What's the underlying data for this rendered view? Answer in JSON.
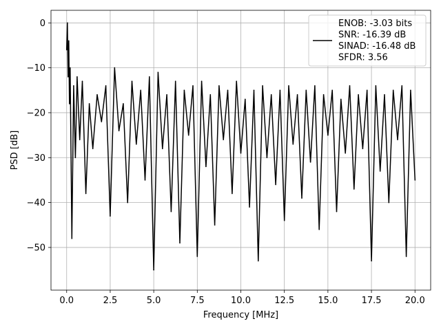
{
  "chart_data": {
    "type": "line",
    "xlabel": "Frequency [MHz]",
    "ylabel": "PSD [dB]",
    "xlim": [
      -0.9,
      20.9
    ],
    "ylim": [
      -59.5,
      2.8
    ],
    "xticks": [
      0.0,
      2.5,
      5.0,
      7.5,
      10.0,
      12.5,
      15.0,
      17.5,
      20.0
    ],
    "xtick_labels": [
      "0.0",
      "2.5",
      "5.0",
      "7.5",
      "10.0",
      "12.5",
      "15.0",
      "17.5",
      "20.0"
    ],
    "yticks": [
      0,
      -10,
      -20,
      -30,
      -40,
      -50
    ],
    "ytick_labels": [
      "0",
      "−10",
      "−20",
      "−30",
      "−40",
      "−50"
    ],
    "grid": true,
    "line_color": "#000000",
    "legend": {
      "placement": "top-right",
      "entries": [
        "ENOB: -3.03 bits",
        "SNR: -16.39 dB",
        "SINAD: -16.48 dB",
        "SFDR: 3.56"
      ]
    },
    "series": [
      {
        "x": [
          0.0,
          0.04,
          0.08,
          0.12,
          0.16,
          0.2,
          0.3,
          0.4,
          0.5,
          0.6,
          0.75,
          0.9,
          1.1,
          1.3,
          1.5,
          1.75,
          2.0,
          2.25,
          2.5,
          2.75,
          3.0,
          3.25,
          3.5,
          3.75,
          4.0,
          4.25,
          4.5,
          4.75,
          5.0,
          5.25,
          5.5,
          5.75,
          6.0,
          6.25,
          6.5,
          6.75,
          7.0,
          7.25,
          7.5,
          7.75,
          8.0,
          8.25,
          8.5,
          8.75,
          9.0,
          9.25,
          9.5,
          9.75,
          10.0,
          10.25,
          10.5,
          10.75,
          11.0,
          11.25,
          11.5,
          11.75,
          12.0,
          12.25,
          12.5,
          12.75,
          13.0,
          13.25,
          13.5,
          13.75,
          14.0,
          14.25,
          14.5,
          14.75,
          15.0,
          15.25,
          15.5,
          15.75,
          16.0,
          16.25,
          16.5,
          16.75,
          17.0,
          17.25,
          17.5,
          17.75,
          18.0,
          18.25,
          18.5,
          18.75,
          19.0,
          19.25,
          19.5,
          19.75,
          20.0
        ],
        "y": [
          -6,
          0,
          -12,
          -4,
          -18,
          -10,
          -48,
          -14,
          -30,
          -12,
          -26,
          -13,
          -38,
          -18,
          -28,
          -16,
          -22,
          -14,
          -43,
          -10,
          -24,
          -18,
          -40,
          -13,
          -27,
          -15,
          -35,
          -12,
          -55,
          -11,
          -28,
          -16,
          -42,
          -13,
          -49,
          -15,
          -25,
          -14,
          -52,
          -13,
          -32,
          -16,
          -45,
          -14,
          -26,
          -15,
          -38,
          -13,
          -29,
          -17,
          -41,
          -15,
          -53,
          -14,
          -30,
          -16,
          -36,
          -15,
          -44,
          -14,
          -27,
          -16,
          -39,
          -15,
          -31,
          -14,
          -46,
          -16,
          -25,
          -15,
          -42,
          -17,
          -29,
          -14,
          -37,
          -16,
          -28,
          -15,
          -53,
          -14,
          -33,
          -16,
          -40,
          -15,
          -26,
          -14,
          -52,
          -15,
          -35
        ]
      }
    ]
  }
}
